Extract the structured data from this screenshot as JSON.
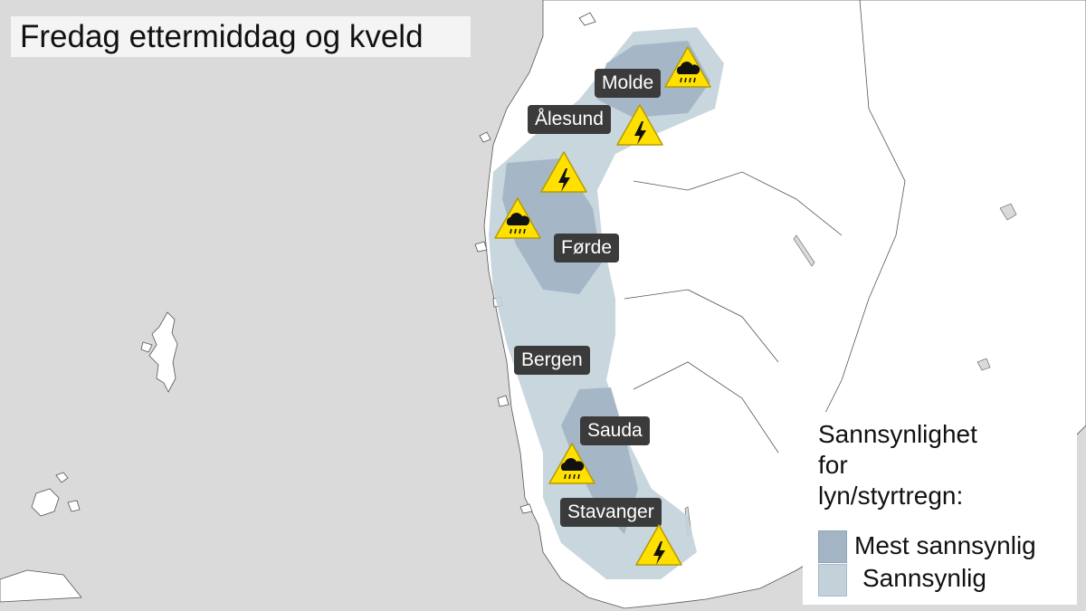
{
  "title": "Fredag ettermiddag og kveld",
  "places": [
    {
      "name": "Molde"
    },
    {
      "name": "Ålesund"
    },
    {
      "name": "Førde"
    },
    {
      "name": "Bergen"
    },
    {
      "name": "Sauda"
    },
    {
      "name": "Stavanger"
    }
  ],
  "warnings": [
    {
      "icon": "heavy-rain-icon",
      "near": "Molde"
    },
    {
      "icon": "lightning-icon",
      "near": "Molde"
    },
    {
      "icon": "lightning-icon",
      "near": "Ålesund"
    },
    {
      "icon": "heavy-rain-icon",
      "near": "Førde"
    },
    {
      "icon": "heavy-rain-icon",
      "near": "Sauda"
    },
    {
      "icon": "lightning-icon",
      "near": "Stavanger"
    }
  ],
  "legend": {
    "heading_line1": "Sannsynlighet",
    "heading_line2": "for",
    "heading_line3": "lyn/styrtregn:",
    "items": [
      {
        "label": "Mest sannsynlig",
        "color": "#a3b5c5"
      },
      {
        "label": "Sannsynlig",
        "color": "#c2d1da"
      }
    ]
  },
  "colors": {
    "sea": "#dadada",
    "land": "#ffffff",
    "warning": "#ffe000",
    "label_bg": "#3b3b3b"
  }
}
